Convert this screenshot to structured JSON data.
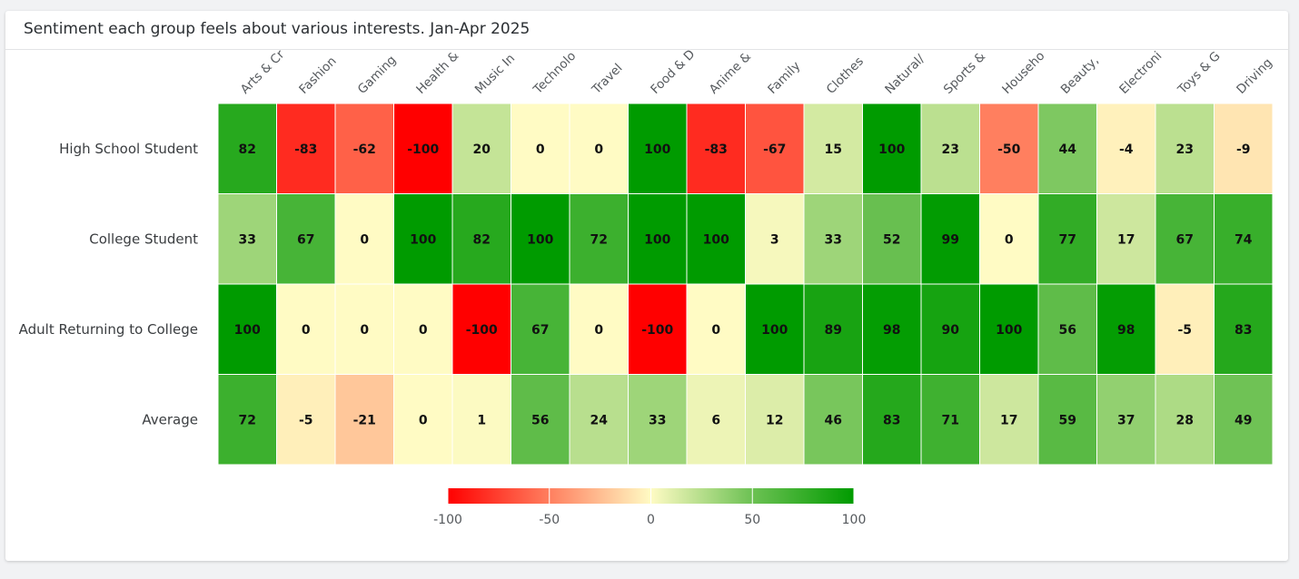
{
  "card": {
    "title": "Sentiment each group feels about various interests. Jan-Apr 2025"
  },
  "chart_data": {
    "type": "heatmap",
    "title": "Sentiment each group feels about various interests. Jan-Apr 2025",
    "rows": [
      "High School Student",
      "College Student",
      "Adult Returning to College",
      "Average"
    ],
    "columns": [
      "Arts & Cr",
      "Fashion",
      "Gaming",
      "Health &",
      "Music In",
      "Technolo",
      "Travel",
      "Food & D",
      "Anime &",
      "Family",
      "Clothes",
      "Natural/",
      "Sports &",
      "Househo",
      "Beauty,",
      "Electroni",
      "Toys & G",
      "Driving"
    ],
    "values": [
      [
        82,
        -83,
        -62,
        -100,
        20,
        0,
        0,
        100,
        -83,
        -67,
        15,
        100,
        23,
        -50,
        44,
        -4,
        23,
        -9
      ],
      [
        33,
        67,
        0,
        100,
        82,
        100,
        72,
        100,
        100,
        3,
        33,
        52,
        99,
        0,
        77,
        17,
        67,
        74
      ],
      [
        100,
        0,
        0,
        0,
        -100,
        67,
        0,
        -100,
        0,
        100,
        89,
        98,
        90,
        100,
        56,
        98,
        -5,
        83
      ],
      [
        72,
        -5,
        -21,
        0,
        1,
        56,
        24,
        33,
        6,
        12,
        46,
        83,
        71,
        17,
        59,
        37,
        28,
        49
      ]
    ],
    "color_scale": {
      "min": -100,
      "max": 100,
      "stops": [
        {
          "value": -100,
          "color": "#ff0000"
        },
        {
          "value": -50,
          "color": "#ff7f5f"
        },
        {
          "value": 0,
          "color": "#fffbc4"
        },
        {
          "value": 50,
          "color": "#6cc153"
        },
        {
          "value": 100,
          "color": "#009b00"
        }
      ],
      "ticks": [
        -100,
        -50,
        0,
        50,
        100
      ]
    }
  }
}
